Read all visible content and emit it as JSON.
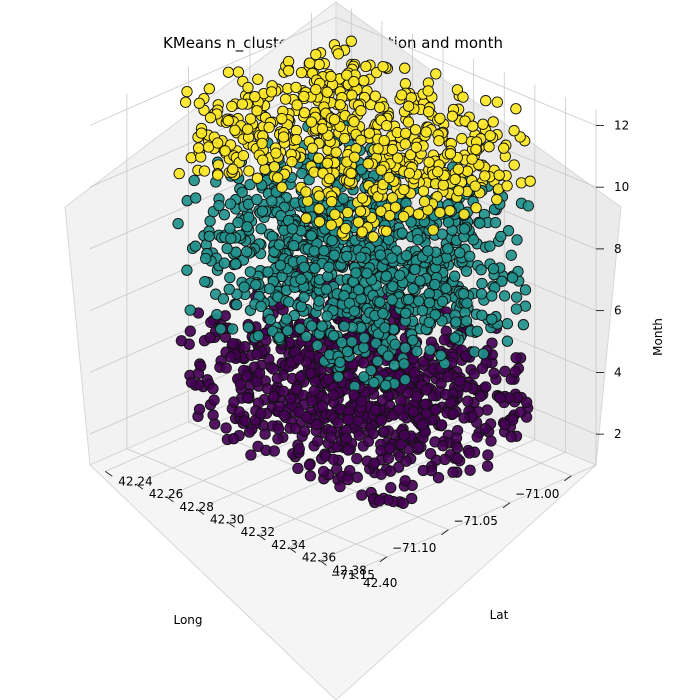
{
  "chart_data": {
    "type": "scatter3d",
    "title": "KMeans n_clusters = 3 in location and month",
    "xlabel": "Long",
    "ylabel": "Lat",
    "zlabel": "Month",
    "xlim": [
      -71.18,
      -70.98
    ],
    "ylim": [
      42.23,
      42.4
    ],
    "zlim": [
      1,
      12.5
    ],
    "x_ticks": [
      "−71.00",
      "−71.05",
      "−71.10",
      "−71.15"
    ],
    "y_ticks": [
      "42.24",
      "42.26",
      "42.28",
      "42.30",
      "42.32",
      "42.34",
      "42.36",
      "42.38",
      "42.40"
    ],
    "z_ticks": [
      "2",
      "4",
      "6",
      "8",
      "10",
      "12"
    ],
    "grid": true,
    "clusters": [
      {
        "color": "#440154",
        "month_range": [
          1,
          4.7
        ]
      },
      {
        "color": "#21918c",
        "month_range": [
          4.7,
          9.3
        ]
      },
      {
        "color": "#fde725",
        "month_range": [
          9.3,
          12
        ]
      }
    ]
  }
}
